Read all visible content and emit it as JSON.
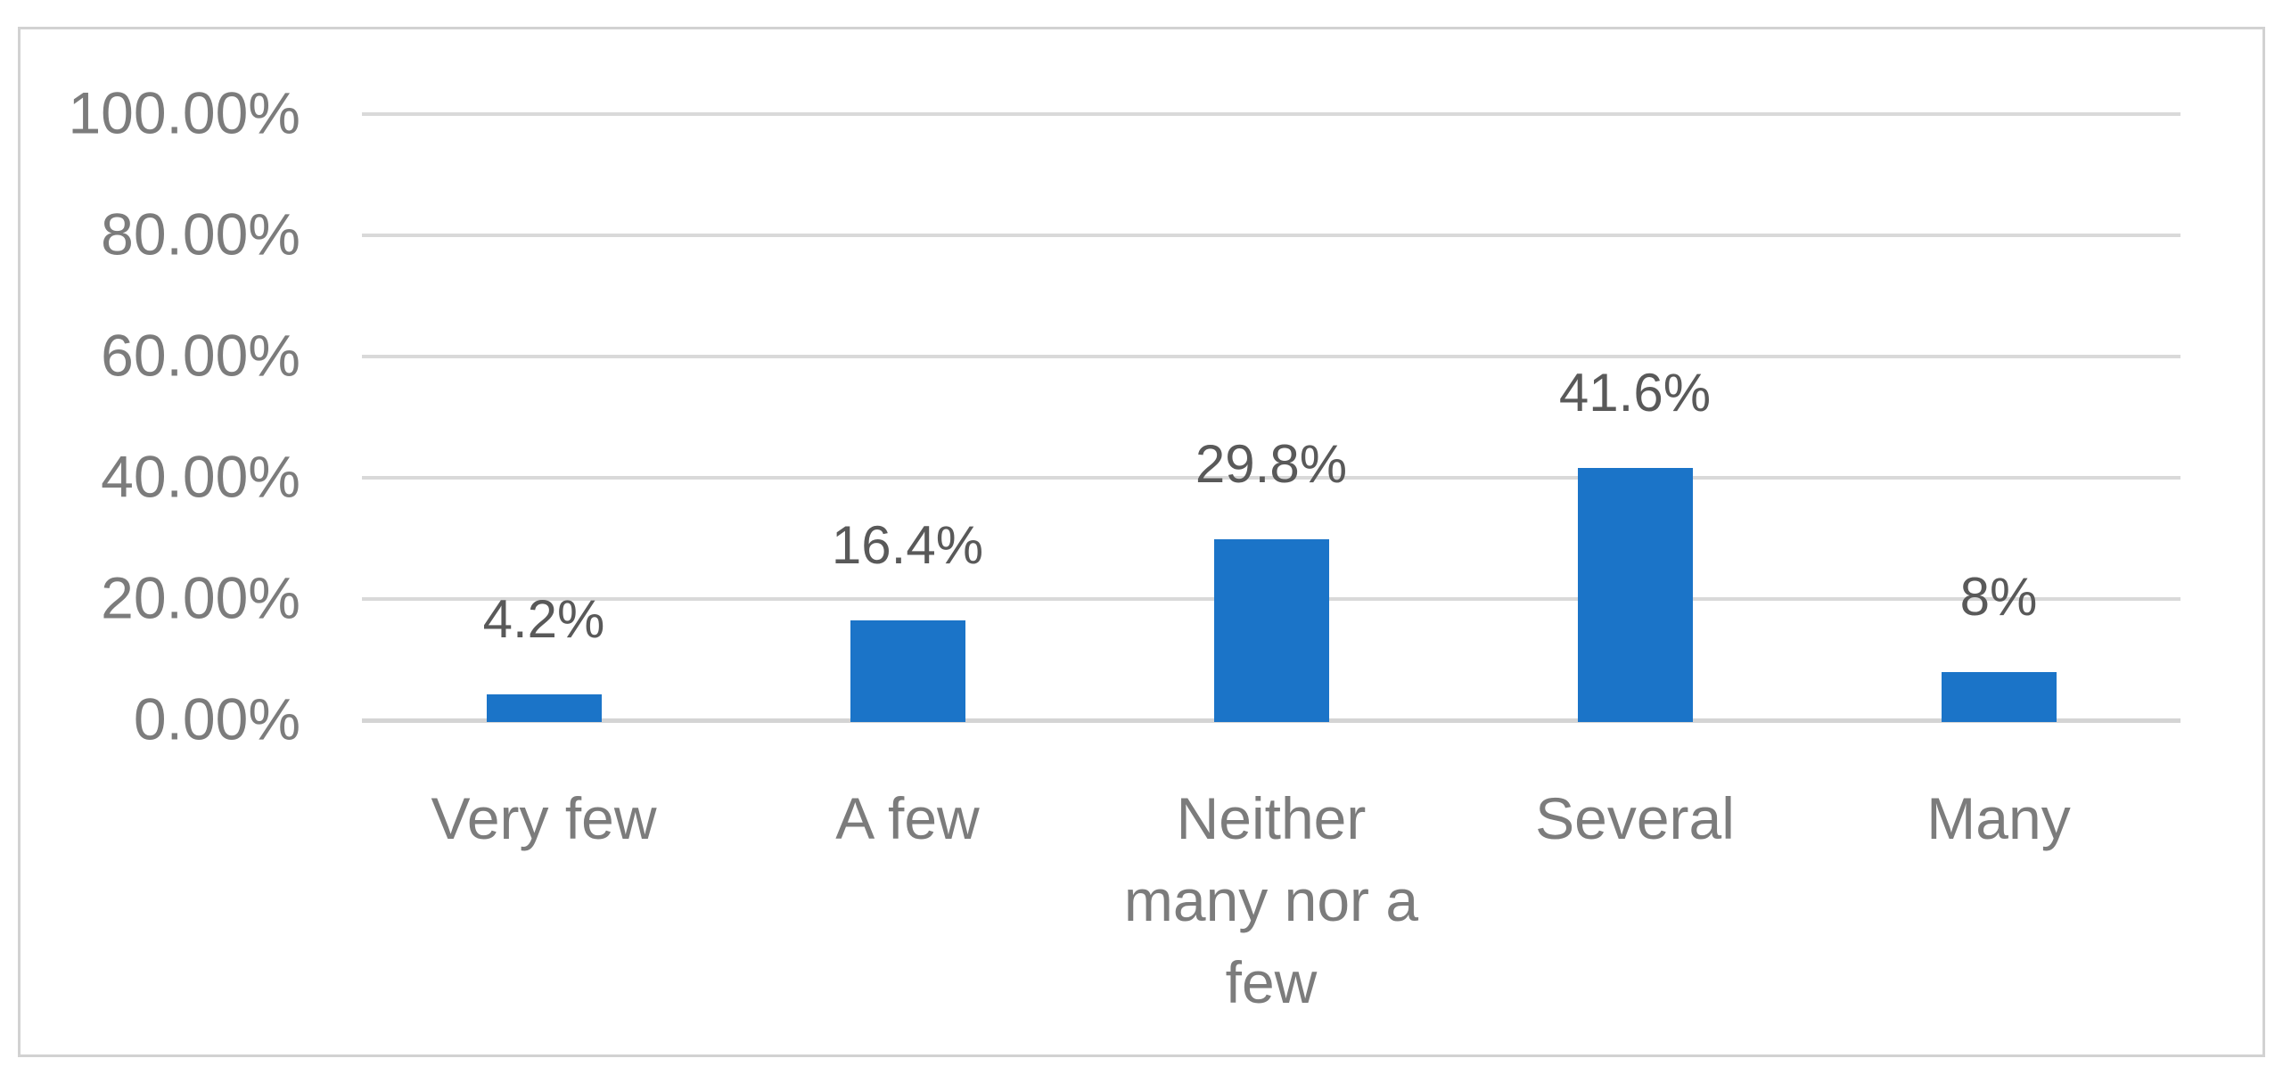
{
  "chart_data": {
    "type": "bar",
    "title": "",
    "categories": [
      "Very few",
      "A few",
      "Neither many nor a few",
      "Several",
      "Many"
    ],
    "values": [
      4.2,
      16.4,
      29.8,
      41.6,
      8
    ],
    "data_labels": [
      "4.2%",
      "16.4%",
      "29.8%",
      "41.6%",
      "8%"
    ],
    "y_ticks": [
      {
        "label": "100.00%",
        "value": 100
      },
      {
        "label": "80.00%",
        "value": 80
      },
      {
        "label": "60.00%",
        "value": 60
      },
      {
        "label": "40.00%",
        "value": 40
      },
      {
        "label": "20.00%",
        "value": 20
      },
      {
        "label": "0.00%",
        "value": 0
      }
    ],
    "ylim": [
      0,
      100
    ],
    "grid": true,
    "legend": "none",
    "xlabel": "",
    "ylabel": "",
    "colors": {
      "bar": "#1b74c8",
      "gridline": "#d9d9d9",
      "axis_line": "#d4d4d4",
      "frame_border": "#d2d2d2",
      "tick_text": "#7c7c7c",
      "data_label_text": "#595959",
      "background": "#ffffff"
    }
  }
}
